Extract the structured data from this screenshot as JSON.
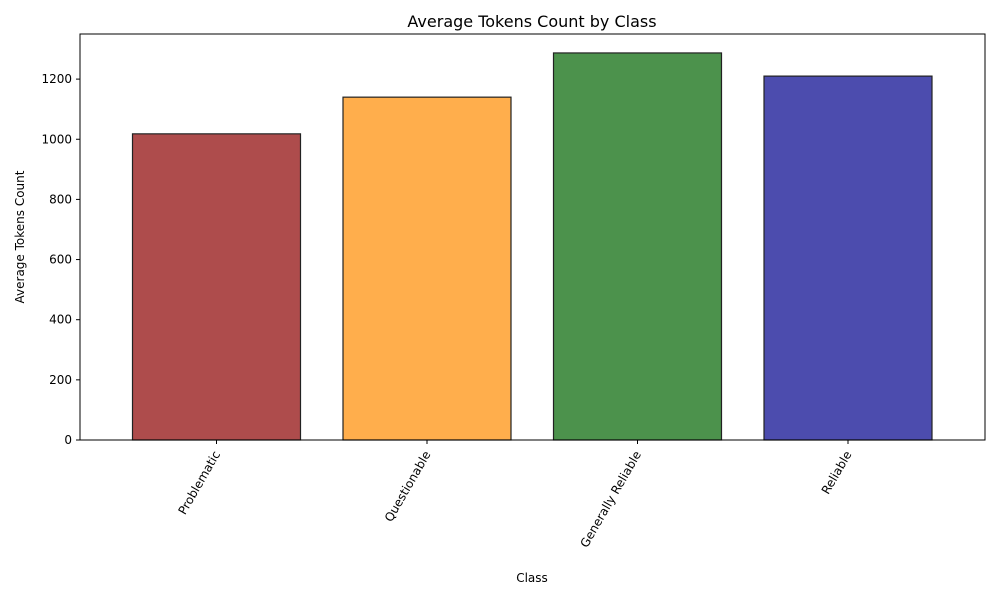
{
  "chart_data": {
    "type": "bar",
    "title": "Average Tokens Count by Class",
    "xlabel": "Class",
    "ylabel": "Average Tokens Count",
    "categories": [
      "Problematic",
      "Questionable",
      "Generally Reliable",
      "Reliable"
    ],
    "values": [
      1018,
      1140,
      1287,
      1210
    ],
    "colors": [
      "#8b0000",
      "#ff8c00",
      "#006400",
      "#00008b"
    ],
    "ylim": [
      0,
      1350
    ],
    "yticks": [
      0,
      200,
      400,
      600,
      800,
      1000,
      1200
    ],
    "grid": false,
    "legend": "none"
  }
}
